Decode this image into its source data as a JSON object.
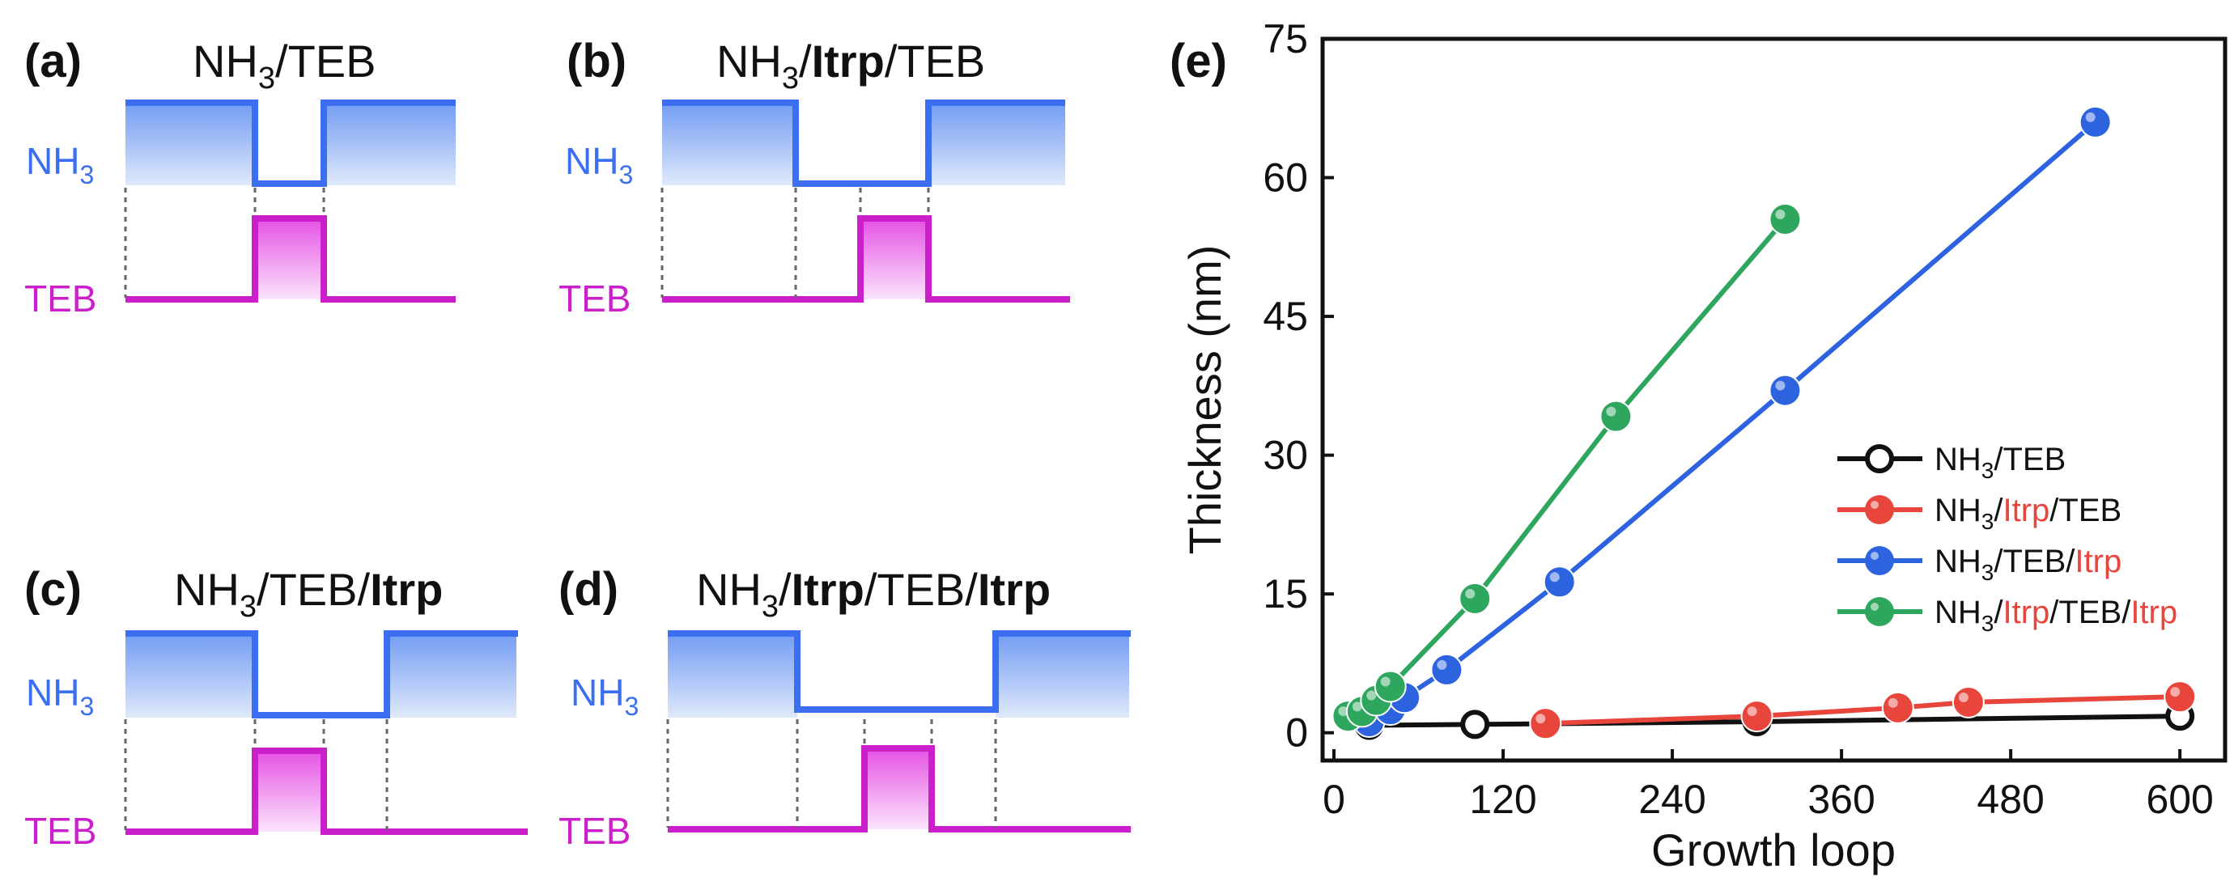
{
  "colors": {
    "nh3": "#3B6EF0",
    "teb": "#CC1FCC",
    "black": "#111111",
    "red": "#E8453C",
    "blue": "#2E63E0",
    "green": "#2FA65E",
    "itrp_legend": "#E8453C"
  },
  "panels": {
    "a": {
      "letter": "(a)",
      "title_parts": [
        "NH",
        "3",
        "/TEB"
      ],
      "nh3_label": "NH",
      "nh3_sub": "3",
      "teb_label": "TEB"
    },
    "b": {
      "letter": "(b)",
      "title_parts": [
        "NH",
        "3",
        "/",
        "Itrp",
        "/TEB"
      ],
      "nh3_label": "NH",
      "nh3_sub": "3",
      "teb_label": "TEB"
    },
    "c": {
      "letter": "(c)",
      "title_parts": [
        "NH",
        "3",
        "/TEB/",
        "Itrp"
      ],
      "nh3_label": "NH",
      "nh3_sub": "3",
      "teb_label": "TEB"
    },
    "d": {
      "letter": "(d)",
      "title_parts": [
        "NH",
        "3",
        "/",
        "Itrp",
        "/TEB/",
        "Itrp"
      ],
      "nh3_label": "NH",
      "nh3_sub": "3",
      "teb_label": "TEB"
    }
  },
  "chart_data": {
    "panel_letter": "(e)",
    "type": "line",
    "xlabel": "Growth loop",
    "ylabel": "Thickness (nm)",
    "xlim": [
      0,
      620
    ],
    "ylim": [
      -3,
      75
    ],
    "xticks": [
      0,
      120,
      240,
      360,
      480,
      600
    ],
    "yticks": [
      0,
      15,
      30,
      45,
      60,
      75
    ],
    "legend_position": "center-right",
    "series": [
      {
        "name": "NH3/TEB",
        "legend": [
          "NH",
          "3",
          "/TEB"
        ],
        "color": "#111111",
        "marker": "open-circle",
        "x": [
          25,
          100,
          300,
          600
        ],
        "y": [
          0.8,
          0.9,
          1.2,
          1.8
        ]
      },
      {
        "name": "NH3/Itrp/TEB",
        "legend": [
          "NH",
          "3",
          "/",
          "Itrp",
          "/TEB"
        ],
        "color": "#E8453C",
        "marker": "filled-circle",
        "x": [
          150,
          300,
          400,
          450,
          600
        ],
        "y": [
          1.0,
          1.8,
          2.7,
          3.3,
          3.9
        ]
      },
      {
        "name": "NH3/TEB/Itrp",
        "legend": [
          "NH",
          "3",
          "/TEB/",
          "Itrp"
        ],
        "color": "#2E63E0",
        "marker": "filled-circle",
        "x": [
          25,
          40,
          50,
          80,
          160,
          320,
          540
        ],
        "y": [
          1.2,
          2.5,
          3.8,
          6.8,
          16.3,
          37.0,
          66.0
        ]
      },
      {
        "name": "NH3/Itrp/TEB/Itrp",
        "legend": [
          "NH",
          "3",
          "/",
          "Itrp",
          "/TEB/",
          "Itrp"
        ],
        "color": "#2FA65E",
        "marker": "filled-circle",
        "x": [
          10,
          20,
          30,
          40,
          100,
          200,
          320
        ],
        "y": [
          1.8,
          2.3,
          3.5,
          5.0,
          14.5,
          34.2,
          55.5
        ]
      }
    ]
  }
}
